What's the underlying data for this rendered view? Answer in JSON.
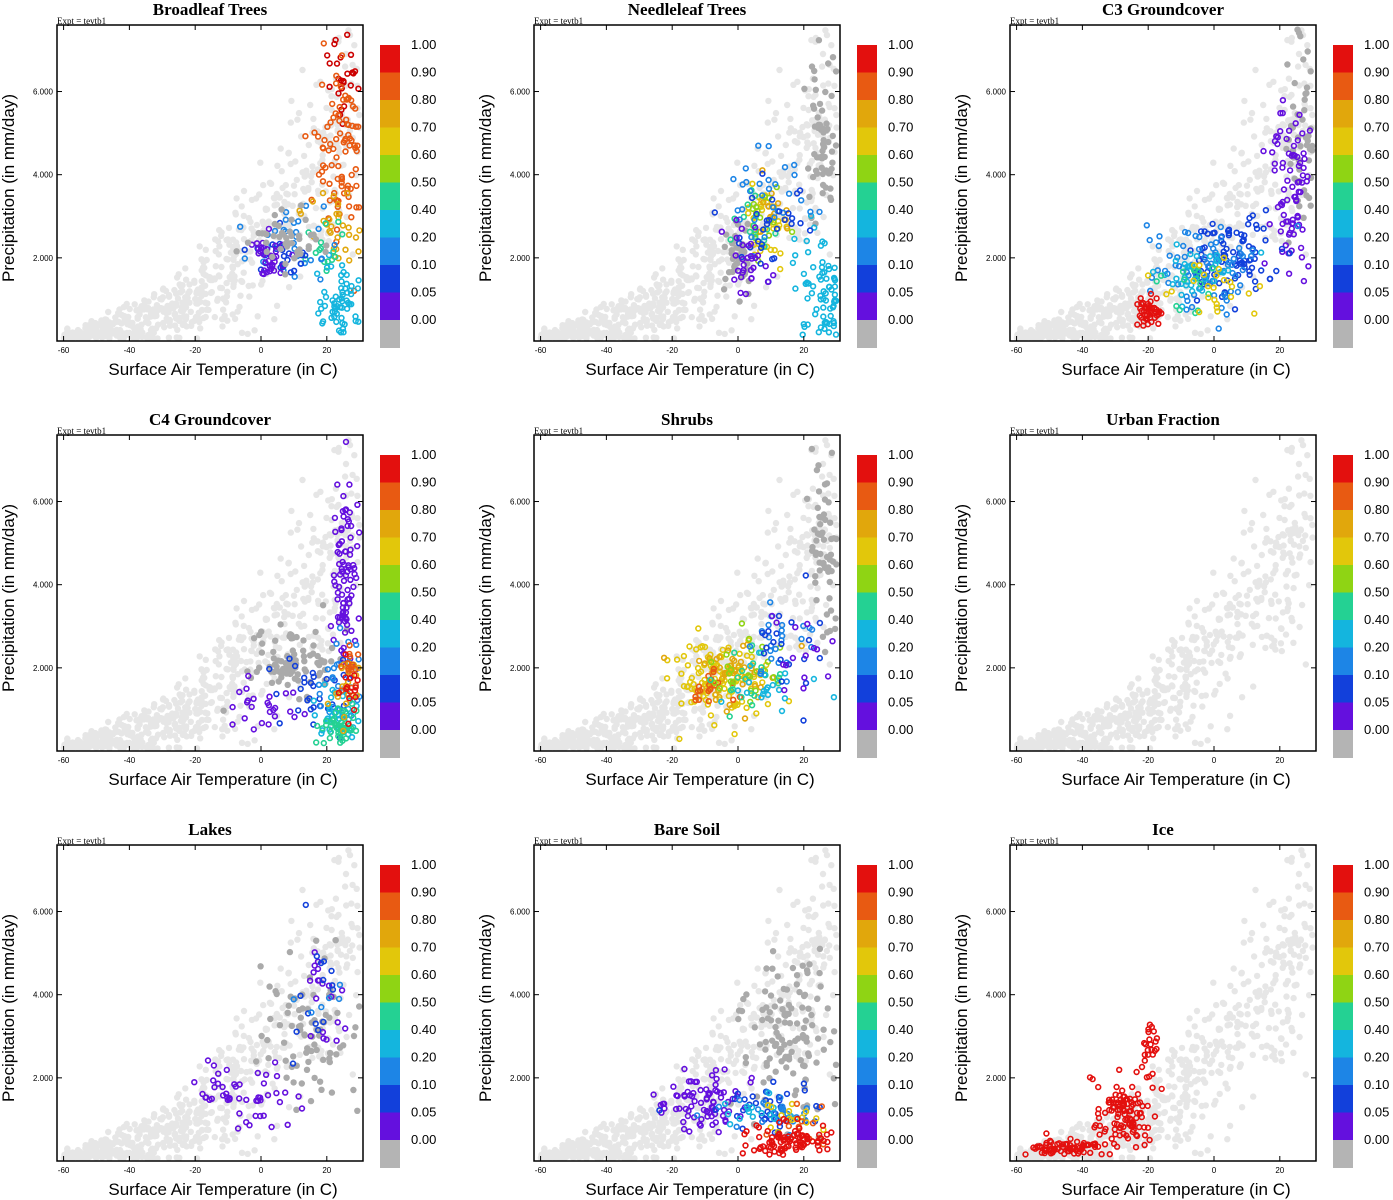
{
  "figure": {
    "expt_label": "Expt = tevtb1",
    "xlabel": "Surface Air Temperature (in C)",
    "ylabel": "Precipitation (in mm/day)",
    "x_ticks": [
      -60,
      -40,
      -20,
      0,
      20
    ],
    "y_ticks": [
      2000,
      4000,
      6000
    ],
    "y_tick_labels": [
      "2.000",
      "4.000",
      "6.000"
    ],
    "xlim": [
      -62,
      31
    ],
    "ylim": [
      0,
      7600
    ],
    "colorbar": {
      "labels": [
        "1.00",
        "0.90",
        "0.80",
        "0.70",
        "0.60",
        "0.50",
        "0.40",
        "0.20",
        "0.10",
        "0.05",
        "0.00"
      ],
      "colors": [
        "#e3100e",
        "#e85a12",
        "#e1a70c",
        "#e2c70b",
        "#8fd414",
        "#24d193",
        "#14b5de",
        "#1d85e6",
        "#1240db",
        "#6410de",
        "#b4b4b4"
      ]
    },
    "background_color": "#e6e6e6"
  },
  "chart_data": [
    {
      "type": "scatter",
      "title": "Broadleaf Trees",
      "xlabel": "Surface Air Temperature (in C)",
      "ylabel": "Precipitation (in mm/day)",
      "xlim": [
        -62,
        31
      ],
      "ylim": [
        0,
        7600
      ],
      "clusters": [
        {
          "color": "#cc0000",
          "center": [
            25,
            6500
          ],
          "spread": [
            5,
            900
          ],
          "n": 25
        },
        {
          "color": "#e85a12",
          "center": [
            24,
            4500
          ],
          "spread": [
            6,
            1700
          ],
          "n": 90
        },
        {
          "color": "#e1a70c",
          "center": [
            22,
            2700
          ],
          "spread": [
            6,
            900
          ],
          "n": 30
        },
        {
          "color": "#24d193",
          "center": [
            21,
            2200
          ],
          "spread": [
            5,
            700
          ],
          "n": 15
        },
        {
          "color": "#14b5de",
          "center": [
            24,
            900
          ],
          "spread": [
            6,
            700
          ],
          "n": 60
        },
        {
          "color": "#1d85e6",
          "center": [
            10,
            2300
          ],
          "spread": [
            12,
            700
          ],
          "n": 30
        },
        {
          "color": "#1240db",
          "center": [
            5,
            2000
          ],
          "spread": [
            7,
            500
          ],
          "n": 25
        },
        {
          "color": "#6410de",
          "center": [
            2,
            1900
          ],
          "spread": [
            5,
            500
          ],
          "n": 35
        },
        {
          "color": "#b4b4b4",
          "center": [
            8,
            2300
          ],
          "spread": [
            10,
            700
          ],
          "n": 45
        }
      ]
    },
    {
      "type": "scatter",
      "title": "Needleleaf Trees",
      "xlabel": "Surface Air Temperature (in C)",
      "ylabel": "Precipitation (in mm/day)",
      "xlim": [
        -62,
        31
      ],
      "ylim": [
        0,
        7600
      ],
      "clusters": [
        {
          "color": "#b4b4b4",
          "center": [
            26,
            5000
          ],
          "spread": [
            4,
            1800
          ],
          "n": 60
        },
        {
          "color": "#b4b4b4",
          "center": [
            0,
            2000
          ],
          "spread": [
            4,
            700
          ],
          "n": 40
        },
        {
          "color": "#14b5de",
          "center": [
            25,
            1200
          ],
          "spread": [
            6,
            1000
          ],
          "n": 70
        },
        {
          "color": "#e2c70b",
          "center": [
            8,
            2700
          ],
          "spread": [
            6,
            900
          ],
          "n": 35
        },
        {
          "color": "#e1a70c",
          "center": [
            10,
            3300
          ],
          "spread": [
            6,
            600
          ],
          "n": 15
        },
        {
          "color": "#8fd414",
          "center": [
            7,
            3000
          ],
          "spread": [
            7,
            1000
          ],
          "n": 15
        },
        {
          "color": "#24d193",
          "center": [
            6,
            2500
          ],
          "spread": [
            7,
            800
          ],
          "n": 15
        },
        {
          "color": "#1d85e6",
          "center": [
            8,
            3300
          ],
          "spread": [
            10,
            900
          ],
          "n": 30
        },
        {
          "color": "#1240db",
          "center": [
            10,
            3000
          ],
          "spread": [
            10,
            900
          ],
          "n": 30
        },
        {
          "color": "#6410de",
          "center": [
            2,
            2000
          ],
          "spread": [
            6,
            700
          ],
          "n": 30
        }
      ]
    },
    {
      "type": "scatter",
      "title": "C3 Groundcover",
      "xlabel": "Surface Air Temperature (in C)",
      "ylabel": "Precipitation (in mm/day)",
      "xlim": [
        -62,
        31
      ],
      "ylim": [
        0,
        7600
      ],
      "clusters": [
        {
          "color": "#b4b4b4",
          "center": [
            27,
            5000
          ],
          "spread": [
            4,
            1700
          ],
          "n": 50
        },
        {
          "color": "#6410de",
          "center": [
            23,
            3600
          ],
          "spread": [
            5,
            1600
          ],
          "n": 80
        },
        {
          "color": "#1240db",
          "center": [
            5,
            2000
          ],
          "spread": [
            12,
            900
          ],
          "n": 90
        },
        {
          "color": "#1d85e6",
          "center": [
            -2,
            1800
          ],
          "spread": [
            12,
            800
          ],
          "n": 80
        },
        {
          "color": "#14b5de",
          "center": [
            -5,
            1600
          ],
          "spread": [
            10,
            600
          ],
          "n": 35
        },
        {
          "color": "#24d193",
          "center": [
            -8,
            1300
          ],
          "spread": [
            8,
            500
          ],
          "n": 15
        },
        {
          "color": "#e2c70b",
          "center": [
            0,
            1200
          ],
          "spread": [
            10,
            500
          ],
          "n": 25
        },
        {
          "color": "#e3100e",
          "center": [
            -20,
            700
          ],
          "spread": [
            3,
            300
          ],
          "n": 45
        }
      ]
    },
    {
      "type": "scatter",
      "title": "C4 Groundcover",
      "xlabel": "Surface Air Temperature (in C)",
      "ylabel": "Precipitation (in mm/day)",
      "xlim": [
        -62,
        31
      ],
      "ylim": [
        0,
        7600
      ],
      "clusters": [
        {
          "color": "#b4b4b4",
          "center": [
            10,
            2200
          ],
          "spread": [
            12,
            800
          ],
          "n": 90
        },
        {
          "color": "#6410de",
          "center": [
            26,
            4200
          ],
          "spread": [
            3,
            2000
          ],
          "n": 90
        },
        {
          "color": "#6410de",
          "center": [
            0,
            1000
          ],
          "spread": [
            10,
            400
          ],
          "n": 25
        },
        {
          "color": "#1240db",
          "center": [
            18,
            1500
          ],
          "spread": [
            10,
            900
          ],
          "n": 30
        },
        {
          "color": "#1d85e6",
          "center": [
            22,
            1700
          ],
          "spread": [
            8,
            900
          ],
          "n": 25
        },
        {
          "color": "#14b5de",
          "center": [
            24,
            900
          ],
          "spread": [
            5,
            600
          ],
          "n": 40
        },
        {
          "color": "#24d193",
          "center": [
            24,
            600
          ],
          "spread": [
            5,
            400
          ],
          "n": 45
        },
        {
          "color": "#e1a70c",
          "center": [
            26,
            1600
          ],
          "spread": [
            4,
            700
          ],
          "n": 20
        },
        {
          "color": "#e85a12",
          "center": [
            27,
            2000
          ],
          "spread": [
            3,
            600
          ],
          "n": 15
        },
        {
          "color": "#e3100e",
          "center": [
            27,
            1500
          ],
          "spread": [
            3,
            800
          ],
          "n": 15
        }
      ]
    },
    {
      "type": "scatter",
      "title": "Shrubs",
      "xlabel": "Surface Air Temperature (in C)",
      "ylabel": "Precipitation (in mm/day)",
      "xlim": [
        -62,
        31
      ],
      "ylim": [
        0,
        7600
      ],
      "clusters": [
        {
          "color": "#b4b4b4",
          "center": [
            26,
            5000
          ],
          "spread": [
            4,
            1800
          ],
          "n": 60
        },
        {
          "color": "#e2c70b",
          "center": [
            -5,
            1700
          ],
          "spread": [
            12,
            700
          ],
          "n": 110
        },
        {
          "color": "#e1a70c",
          "center": [
            -3,
            1800
          ],
          "spread": [
            10,
            700
          ],
          "n": 50
        },
        {
          "color": "#e85a12",
          "center": [
            -10,
            1500
          ],
          "spread": [
            5,
            400
          ],
          "n": 20
        },
        {
          "color": "#8fd414",
          "center": [
            0,
            2000
          ],
          "spread": [
            10,
            800
          ],
          "n": 25
        },
        {
          "color": "#24d193",
          "center": [
            5,
            1800
          ],
          "spread": [
            10,
            700
          ],
          "n": 20
        },
        {
          "color": "#14b5de",
          "center": [
            10,
            1600
          ],
          "spread": [
            10,
            700
          ],
          "n": 20
        },
        {
          "color": "#1d85e6",
          "center": [
            12,
            2500
          ],
          "spread": [
            10,
            900
          ],
          "n": 25
        },
        {
          "color": "#1240db",
          "center": [
            15,
            2600
          ],
          "spread": [
            10,
            1000
          ],
          "n": 20
        },
        {
          "color": "#6410de",
          "center": [
            18,
            2200
          ],
          "spread": [
            8,
            900
          ],
          "n": 15
        }
      ]
    },
    {
      "type": "scatter",
      "title": "Urban Fraction",
      "xlabel": "Surface Air Temperature (in C)",
      "ylabel": "Precipitation (in mm/day)",
      "xlim": [
        -62,
        31
      ],
      "ylim": [
        0,
        7600
      ],
      "clusters": []
    },
    {
      "type": "scatter",
      "title": "Lakes",
      "xlabel": "Surface Air Temperature (in C)",
      "ylabel": "Precipitation (in mm/day)",
      "xlim": [
        -62,
        31
      ],
      "ylim": [
        0,
        7600
      ],
      "clusters": [
        {
          "color": "#b4b4b4",
          "center": [
            15,
            3000
          ],
          "spread": [
            12,
            1500
          ],
          "n": 80
        },
        {
          "color": "#6410de",
          "center": [
            -5,
            1500
          ],
          "spread": [
            14,
            600
          ],
          "n": 50
        },
        {
          "color": "#6410de",
          "center": [
            20,
            3800
          ],
          "spread": [
            6,
            1200
          ],
          "n": 20
        },
        {
          "color": "#1240db",
          "center": [
            18,
            4000
          ],
          "spread": [
            8,
            1300
          ],
          "n": 15
        },
        {
          "color": "#1d85e6",
          "center": [
            20,
            3500
          ],
          "spread": [
            8,
            1200
          ],
          "n": 6
        }
      ]
    },
    {
      "type": "scatter",
      "title": "Bare Soil",
      "xlabel": "Surface Air Temperature (in C)",
      "ylabel": "Precipitation (in mm/day)",
      "xlim": [
        -62,
        31
      ],
      "ylim": [
        0,
        7600
      ],
      "clusters": [
        {
          "color": "#b4b4b4",
          "center": [
            15,
            3200
          ],
          "spread": [
            12,
            1500
          ],
          "n": 120
        },
        {
          "color": "#6410de",
          "center": [
            -10,
            1400
          ],
          "spread": [
            10,
            600
          ],
          "n": 80
        },
        {
          "color": "#1240db",
          "center": [
            10,
            1300
          ],
          "spread": [
            12,
            500
          ],
          "n": 40
        },
        {
          "color": "#1d85e6",
          "center": [
            12,
            1200
          ],
          "spread": [
            12,
            500
          ],
          "n": 25
        },
        {
          "color": "#14b5de",
          "center": [
            5,
            1100
          ],
          "spread": [
            10,
            400
          ],
          "n": 15
        },
        {
          "color": "#e2c70b",
          "center": [
            15,
            1000
          ],
          "spread": [
            10,
            400
          ],
          "n": 15
        },
        {
          "color": "#e85a12",
          "center": [
            20,
            900
          ],
          "spread": [
            8,
            400
          ],
          "n": 10
        },
        {
          "color": "#e3100e",
          "center": [
            15,
            500
          ],
          "spread": [
            10,
            300
          ],
          "n": 90
        }
      ]
    },
    {
      "type": "scatter",
      "title": "Ice",
      "xlabel": "Surface Air Temperature (in C)",
      "ylabel": "Precipitation (in mm/day)",
      "xlim": [
        -62,
        31
      ],
      "ylim": [
        0,
        7600
      ],
      "clusters": [
        {
          "color": "#e3100e",
          "center": [
            -45,
            300
          ],
          "spread": [
            10,
            200
          ],
          "n": 70
        },
        {
          "color": "#e3100e",
          "center": [
            -28,
            1100
          ],
          "spread": [
            7,
            700
          ],
          "n": 110
        },
        {
          "color": "#e3100e",
          "center": [
            -20,
            2600
          ],
          "spread": [
            4,
            700
          ],
          "n": 25
        }
      ]
    }
  ]
}
